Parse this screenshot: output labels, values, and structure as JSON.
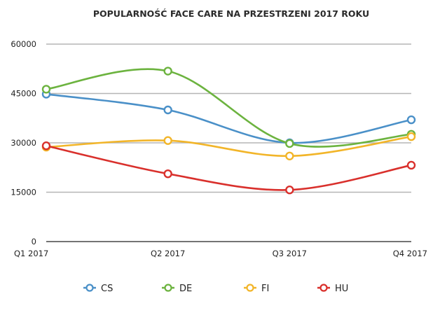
{
  "chart_data": {
    "type": "line",
    "title": "POPULARNOŚĆ FACE CARE NA PRZESTRZENI 2017 ROKU",
    "xlabel": "",
    "ylabel": "",
    "categories": [
      "Q1 2017",
      "Q2 2017",
      "Q3 2017",
      "Q4 2017"
    ],
    "ylim": [
      0,
      60000
    ],
    "yticks": [
      0,
      15000,
      30000,
      45000,
      60000
    ],
    "ytick_labels": [
      "0",
      "15000",
      "30000",
      "45000",
      "60000"
    ],
    "grid": true,
    "smooth": true,
    "legend_position": "bottom",
    "series": [
      {
        "name": "CS",
        "color": "#4a90c8",
        "values": [
          44800,
          40000,
          30000,
          37000
        ]
      },
      {
        "name": "DE",
        "color": "#6cb33f",
        "values": [
          46300,
          51800,
          29800,
          32600
        ]
      },
      {
        "name": "FI",
        "color": "#f2b529",
        "values": [
          28700,
          30700,
          26000,
          31900
        ]
      },
      {
        "name": "HU",
        "color": "#d9302c",
        "values": [
          29100,
          20600,
          15700,
          23200
        ]
      }
    ]
  },
  "colors": {
    "gridline": "#b5b5b5",
    "axis": "#222222"
  }
}
